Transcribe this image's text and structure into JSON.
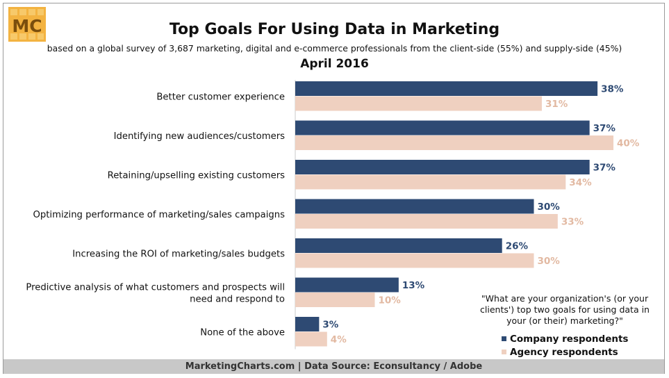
{
  "header": {
    "logo_text": "MC",
    "title": "Top Goals For Using Data in Marketing",
    "subtitle": "based on a global survey of 3,687 marketing, digital and e-commerce professionals from the client-side (55%) and supply-side (45%)",
    "date": "April 2016"
  },
  "note": "\"What are your organization's (or your clients') top two goals for using data in your (or their) marketing?\"",
  "footer": "MarketingCharts.com | Data Source: Econsultancy / Adobe",
  "colors": {
    "company": "#2e4a73",
    "agency": "#efd0c0",
    "agency_label": "#e2b9a2",
    "logo_bg": "#f3b341",
    "logo_text": "#7a4e0d"
  },
  "chart_data": {
    "type": "bar",
    "orientation": "horizontal",
    "categories": [
      "Better customer experience",
      "Identifying new audiences/customers",
      "Retaining/upselling existing customers",
      "Optimizing performance of marketing/sales campaigns",
      "Increasing the ROI of marketing/sales budgets",
      "Predictive analysis of what customers and prospects will need and respond to",
      "None of the above"
    ],
    "category_lines": [
      [
        "Better customer experience"
      ],
      [
        "Identifying new audiences/customers"
      ],
      [
        "Retaining/upselling existing customers"
      ],
      [
        "Optimizing performance of marketing/sales campaigns"
      ],
      [
        "Increasing the ROI of marketing/sales budgets"
      ],
      [
        "Predictive analysis of what customers and prospects will",
        "need and respond to"
      ],
      [
        "None of the above"
      ]
    ],
    "series": [
      {
        "name": "Company respondents",
        "values": [
          38,
          37,
          37,
          30,
          26,
          13,
          3
        ],
        "labels": [
          "38%",
          "37%",
          "37%",
          "30%",
          "26%",
          "13%",
          "3%"
        ]
      },
      {
        "name": "Agency respondents",
        "values": [
          31,
          40,
          34,
          33,
          30,
          10,
          4
        ],
        "labels": [
          "31%",
          "40%",
          "34%",
          "33%",
          "30%",
          "10%",
          "4%"
        ]
      }
    ],
    "unit": "%",
    "xlim": [
      0,
      40
    ],
    "grid": false,
    "legend_position": "bottom-right"
  }
}
